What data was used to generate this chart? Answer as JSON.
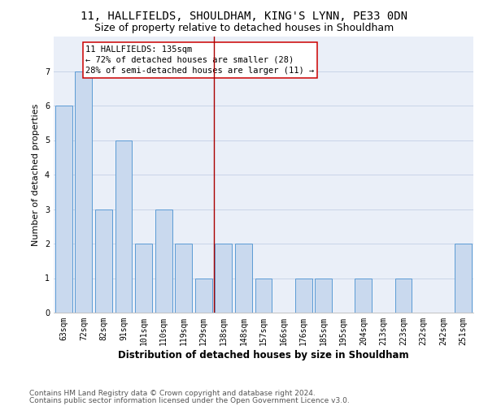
{
  "title1": "11, HALLFIELDS, SHOULDHAM, KING'S LYNN, PE33 0DN",
  "title2": "Size of property relative to detached houses in Shouldham",
  "xlabel": "Distribution of detached houses by size in Shouldham",
  "ylabel": "Number of detached properties",
  "categories": [
    "63sqm",
    "72sqm",
    "82sqm",
    "91sqm",
    "101sqm",
    "110sqm",
    "119sqm",
    "129sqm",
    "138sqm",
    "148sqm",
    "157sqm",
    "166sqm",
    "176sqm",
    "185sqm",
    "195sqm",
    "204sqm",
    "213sqm",
    "223sqm",
    "232sqm",
    "242sqm",
    "251sqm"
  ],
  "values": [
    6,
    7,
    3,
    5,
    2,
    3,
    2,
    1,
    2,
    2,
    1,
    0,
    1,
    1,
    0,
    1,
    0,
    1,
    0,
    0,
    2
  ],
  "bar_color": "#c9d9ee",
  "bar_edge_color": "#5b9bd5",
  "vline_x_index": 7.5,
  "vline_color": "#aa0000",
  "annotation_line1": "11 HALLFIELDS: 135sqm",
  "annotation_line2": "← 72% of detached houses are smaller (28)",
  "annotation_line3": "28% of semi-detached houses are larger (11) →",
  "annotation_box_color": "#cc0000",
  "annotation_fontsize": 7.5,
  "ylim": [
    0,
    8
  ],
  "yticks": [
    0,
    1,
    2,
    3,
    4,
    5,
    6,
    7
  ],
  "grid_color": "#c8d4e8",
  "bg_color": "#eaeff8",
  "footer1": "Contains HM Land Registry data © Crown copyright and database right 2024.",
  "footer2": "Contains public sector information licensed under the Open Government Licence v3.0.",
  "title1_fontsize": 10,
  "title2_fontsize": 9,
  "xlabel_fontsize": 8.5,
  "ylabel_fontsize": 8,
  "tick_fontsize": 7,
  "footer_fontsize": 6.5
}
